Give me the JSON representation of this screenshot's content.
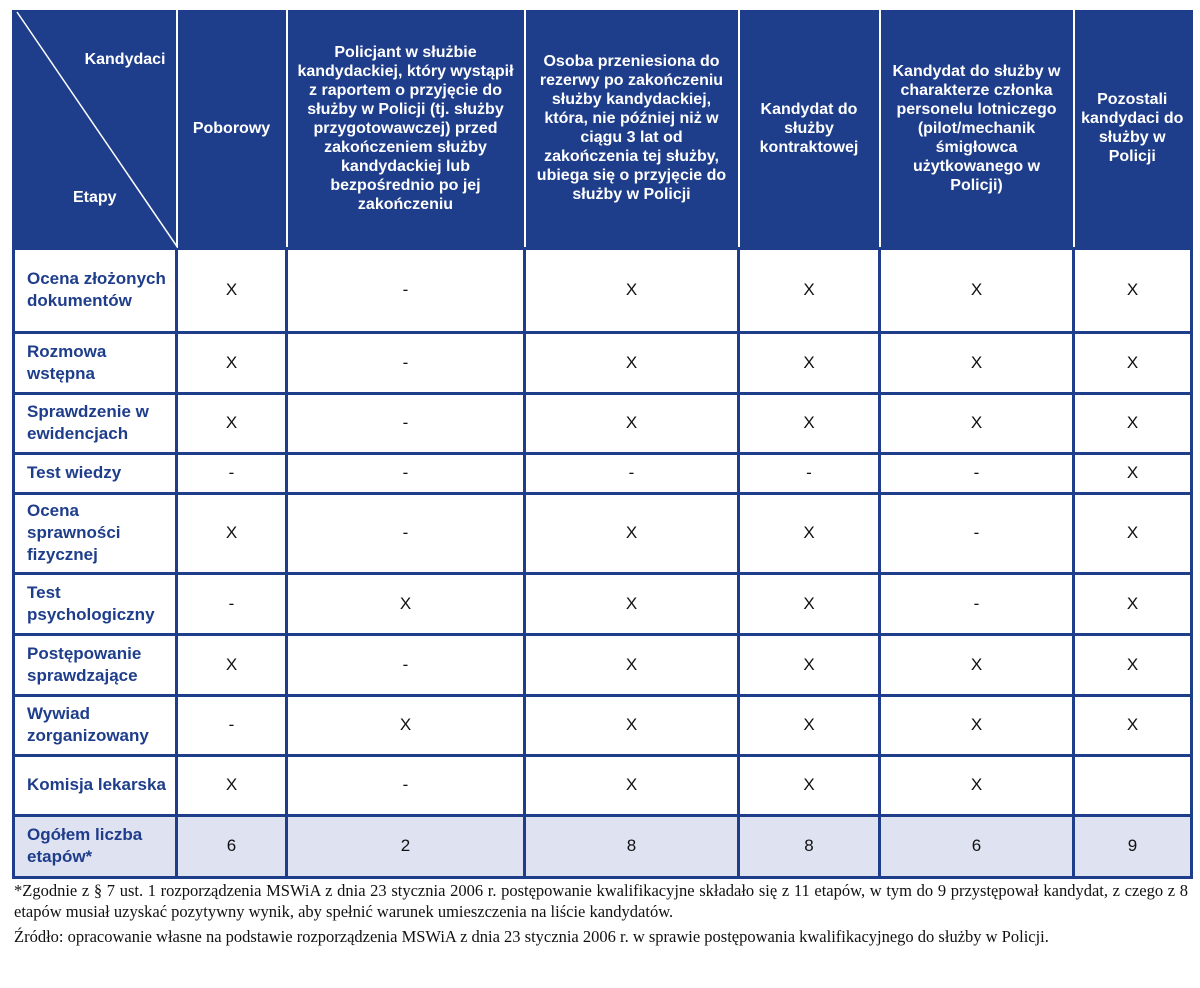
{
  "table": {
    "corner": {
      "top": "Kandydaci",
      "bottom": "Etapy"
    },
    "columns": [
      "Poborowy",
      "Policjant w służbie kandydackiej, który wystąpił z raportem o przyjęcie do służby w Policji (tj. służby przygotowawczej) przed zakończeniem służby kandydackiej lub bezpośrednio po jej zakończeniu",
      "Osoba przeniesiona do rezerwy po zakończeniu służby kandydackiej, która, nie później niż w ciągu 3 lat od zakończenia tej służby, ubiega się o przyjęcie do służby w Policji",
      "Kandydat do służby kontraktowej",
      "Kandydat do służby w charakterze członka personelu lotniczego (pilot/mechanik śmigłowca użytkowanego w Policji)",
      "Pozostali kandydaci do służby w Policji"
    ],
    "rows": [
      {
        "label": "Ocena złożonych dokumentów",
        "cells": [
          "X",
          "-",
          "X",
          "X",
          "X",
          "X"
        ]
      },
      {
        "label": "Rozmowa wstępna",
        "cells": [
          "X",
          "-",
          "X",
          "X",
          "X",
          "X"
        ]
      },
      {
        "label": "Sprawdzenie w ewidencjach",
        "cells": [
          "X",
          "-",
          "X",
          "X",
          "X",
          "X"
        ]
      },
      {
        "label": "Test wiedzy",
        "cells": [
          "-",
          "-",
          "-",
          "-",
          "-",
          "X"
        ]
      },
      {
        "label": "Ocena sprawności fizycznej",
        "cells": [
          "X",
          "-",
          "X",
          "X",
          "-",
          "X"
        ]
      },
      {
        "label": "Test psychologiczny",
        "cells": [
          "-",
          "X",
          "X",
          "X",
          "-",
          "X"
        ]
      },
      {
        "label": "Postępowanie sprawdzające",
        "cells": [
          "X",
          "-",
          "X",
          "X",
          "X",
          "X"
        ]
      },
      {
        "label": "Wywiad zorganizowany",
        "cells": [
          "-",
          "X",
          "X",
          "X",
          "X",
          "X"
        ]
      },
      {
        "label": "Komisja lekarska",
        "cells": [
          "X",
          "-",
          "X",
          "X",
          "X",
          null
        ]
      }
    ],
    "total": {
      "label": "Ogółem liczba etapów*",
      "cells": [
        6,
        2,
        8,
        8,
        6,
        9
      ]
    }
  },
  "footnotes": [
    "*Zgodnie z § 7 ust. 1 rozporządzenia MSWiA z dnia 23 stycznia 2006 r. postępowanie kwalifikacyjne składało się z 11 etapów, w tym do 9 przystępował kandydat, z czego z 8 etapów musiał uzyskać pozytywny wynik, aby spełnić warunek umieszczenia na liście kandydatów.",
    "Źródło: opracowanie własne na podstawie rozporządzenia MSWiA z dnia 23 stycznia 2006 r. w sprawie postępowania kwalifikacyjnego do służby w Policji."
  ]
}
